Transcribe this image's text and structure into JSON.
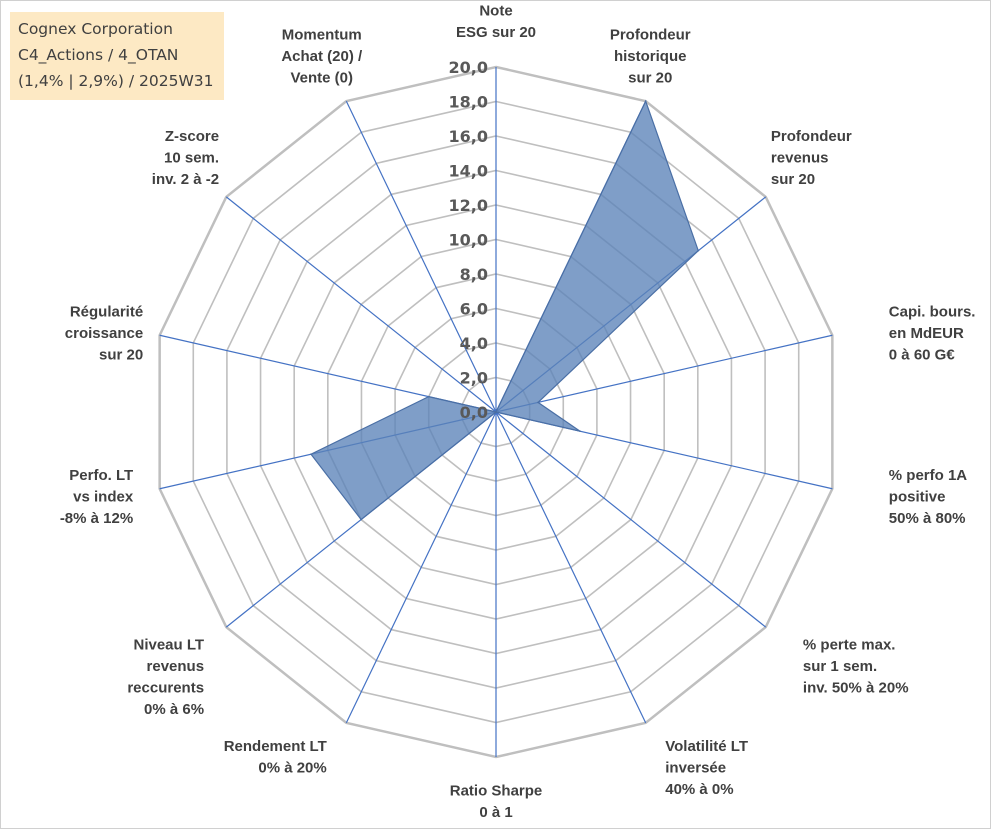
{
  "title_box": {
    "line1": "Cognex Corporation",
    "line2": "C4_Actions / 4_OTAN",
    "line3": "(1,4% | 2,9%) / 2025W31"
  },
  "chart_data": {
    "type": "radar",
    "r_min": 0,
    "r_max": 20,
    "tick_step": 2,
    "ticks": [
      "0,0",
      "2,0",
      "4,0",
      "6,0",
      "8,0",
      "10,0",
      "12,0",
      "14,0",
      "16,0",
      "18,0",
      "20,0"
    ],
    "grid_color": "#bfbfbf",
    "spoke_color": "#4472c4",
    "fill_color": "#5b83b8",
    "outline_color": "#4a6fa5",
    "axes": [
      {
        "label": [
          "Note",
          "ESG sur 20"
        ],
        "value": 0
      },
      {
        "label": [
          "Profondeur",
          "historique",
          "sur 20"
        ],
        "value": 20
      },
      {
        "label": [
          "Profondeur",
          "revenus",
          "sur 20"
        ],
        "value": 15
      },
      {
        "label": [
          "Capi. bours.",
          "en MdEUR",
          "0 à 60 G€"
        ],
        "value": 2.5
      },
      {
        "label": [
          "% perfo 1A",
          "positive",
          "50% à 80%"
        ],
        "value": 5
      },
      {
        "label": [
          "% perte max.",
          "sur 1 sem.",
          "inv. 50% à 20%"
        ],
        "value": 0
      },
      {
        "label": [
          "Volatilité LT",
          "inversée",
          "40% à 0%"
        ],
        "value": 0
      },
      {
        "label": [
          "Ratio Sharpe",
          "0 à 1"
        ],
        "value": 0
      },
      {
        "label": [
          "Rendement LT",
          "0% à 20%"
        ],
        "value": 0
      },
      {
        "label": [
          "Niveau LT",
          "revenus",
          "reccurents",
          "0% à 6%"
        ],
        "value": 10
      },
      {
        "label": [
          "Perfo. LT",
          "vs index",
          "-8% à 12%"
        ],
        "value": 11
      },
      {
        "label": [
          "Régularité",
          "croissance",
          "sur 20"
        ],
        "value": 4
      },
      {
        "label": [
          "Z-score",
          "10 sem.",
          "inv. 2 à -2"
        ],
        "value": 0
      },
      {
        "label": [
          "Momentum",
          "Achat (20) /",
          "Vente (0)"
        ],
        "value": 0
      }
    ]
  }
}
